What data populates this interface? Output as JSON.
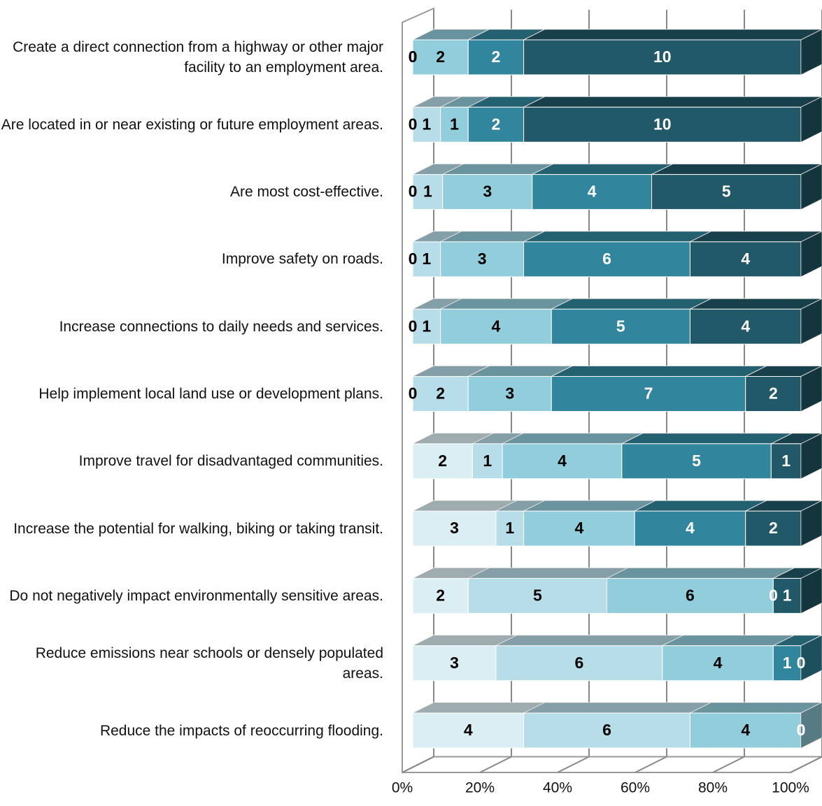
{
  "chart_data": {
    "type": "bar",
    "orientation": "horizontal",
    "stacked": "percent",
    "categories": [
      "Create a direct connection from a highway or other major facility to an employment area.",
      "Are located in or near existing or future employment areas.",
      "Are most cost-effective.",
      "Improve safety on roads.",
      "Increase connections to daily needs and services.",
      "Help implement local land use or development plans.",
      "Improve travel for disadvantaged communities.",
      "Increase the potential for walking, biking or taking transit.",
      "Do not negatively impact environmentally sensitive areas.",
      "Reduce emissions near schools or densely populated areas.",
      "Reduce the impacts of reoccurring flooding."
    ],
    "series": [
      {
        "color": "#dbeef3",
        "values": [
          0,
          0,
          0,
          0,
          0,
          0,
          2,
          3,
          2,
          3,
          4
        ]
      },
      {
        "color": "#b7dde8",
        "values": [
          0,
          1,
          1,
          1,
          1,
          2,
          1,
          1,
          5,
          6,
          6
        ]
      },
      {
        "color": "#92cddc",
        "values": [
          2,
          1,
          3,
          3,
          4,
          3,
          4,
          4,
          6,
          4,
          4
        ]
      },
      {
        "color": "#31859c",
        "values": [
          2,
          2,
          4,
          6,
          5,
          7,
          5,
          4,
          0,
          1,
          0
        ]
      },
      {
        "color": "#215968",
        "values": [
          10,
          10,
          5,
          4,
          4,
          2,
          1,
          2,
          1,
          0,
          0
        ]
      }
    ],
    "xlim": [
      0,
      100
    ],
    "xticks": [
      {
        "value": 0,
        "label": "0%"
      },
      {
        "value": 20,
        "label": "20%"
      },
      {
        "value": 40,
        "label": "40%"
      },
      {
        "value": 60,
        "label": "60%"
      },
      {
        "value": 80,
        "label": "80%"
      },
      {
        "value": 100,
        "label": "100%"
      }
    ],
    "grid": true
  }
}
